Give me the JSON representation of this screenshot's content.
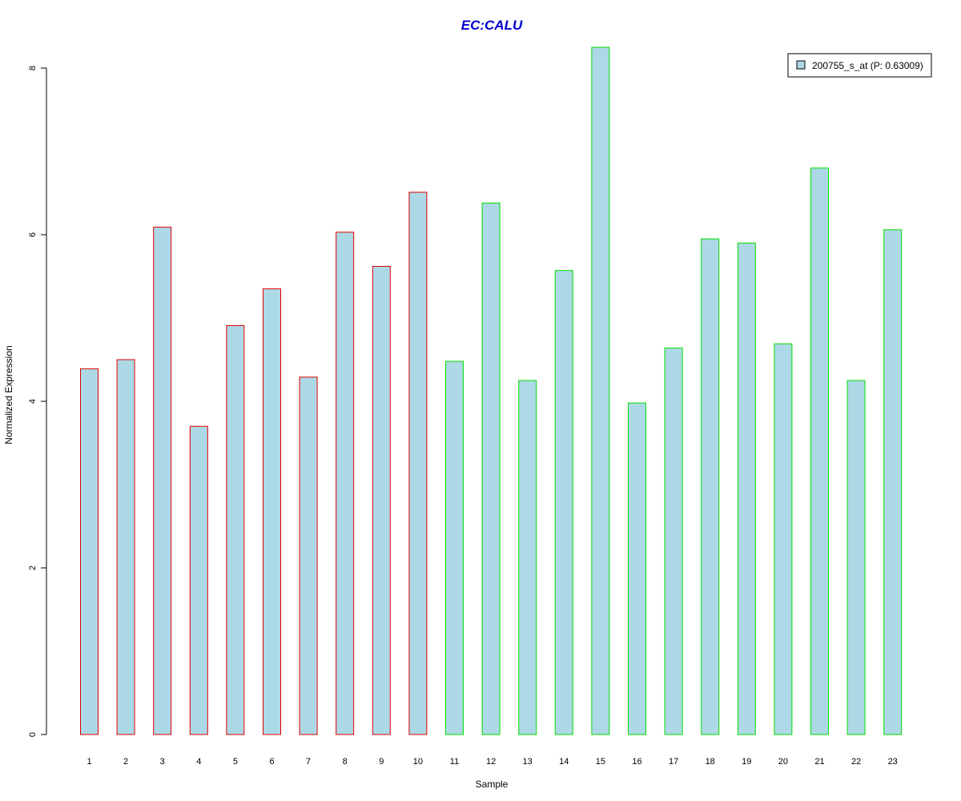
{
  "chart_data": {
    "type": "bar",
    "title": "EC:CALU",
    "xlabel": "Sample",
    "ylabel": "Normalized Expression",
    "categories": [
      "1",
      "2",
      "3",
      "4",
      "5",
      "6",
      "7",
      "8",
      "9",
      "10",
      "11",
      "12",
      "13",
      "14",
      "15",
      "16",
      "17",
      "18",
      "19",
      "20",
      "21",
      "22",
      "23"
    ],
    "series": [
      {
        "name": "200755_s_at (P: 0.63009)",
        "values": [
          4.39,
          4.5,
          6.09,
          3.7,
          4.91,
          5.35,
          4.29,
          6.03,
          5.62,
          6.51,
          4.48,
          6.38,
          4.25,
          5.57,
          8.25,
          3.98,
          4.64,
          5.95,
          5.9,
          4.69,
          6.8,
          4.25,
          6.06
        ]
      }
    ],
    "group_border_colors": [
      "#e00000",
      "#e00000",
      "#e00000",
      "#e00000",
      "#e00000",
      "#e00000",
      "#e00000",
      "#e00000",
      "#e00000",
      "#e00000",
      "#00e000",
      "#00e000",
      "#00e000",
      "#00e000",
      "#00e000",
      "#00e000",
      "#00e000",
      "#00e000",
      "#00e000",
      "#00e000",
      "#00e000",
      "#00e000",
      "#00e000"
    ],
    "yticks": [
      0,
      2,
      4,
      6,
      8
    ],
    "ylim": [
      0,
      8.25
    ],
    "legend_position": "top-right",
    "colors": {
      "bar_fill": "#add8e6",
      "title": "#0000cd",
      "axis": "#000000"
    }
  }
}
